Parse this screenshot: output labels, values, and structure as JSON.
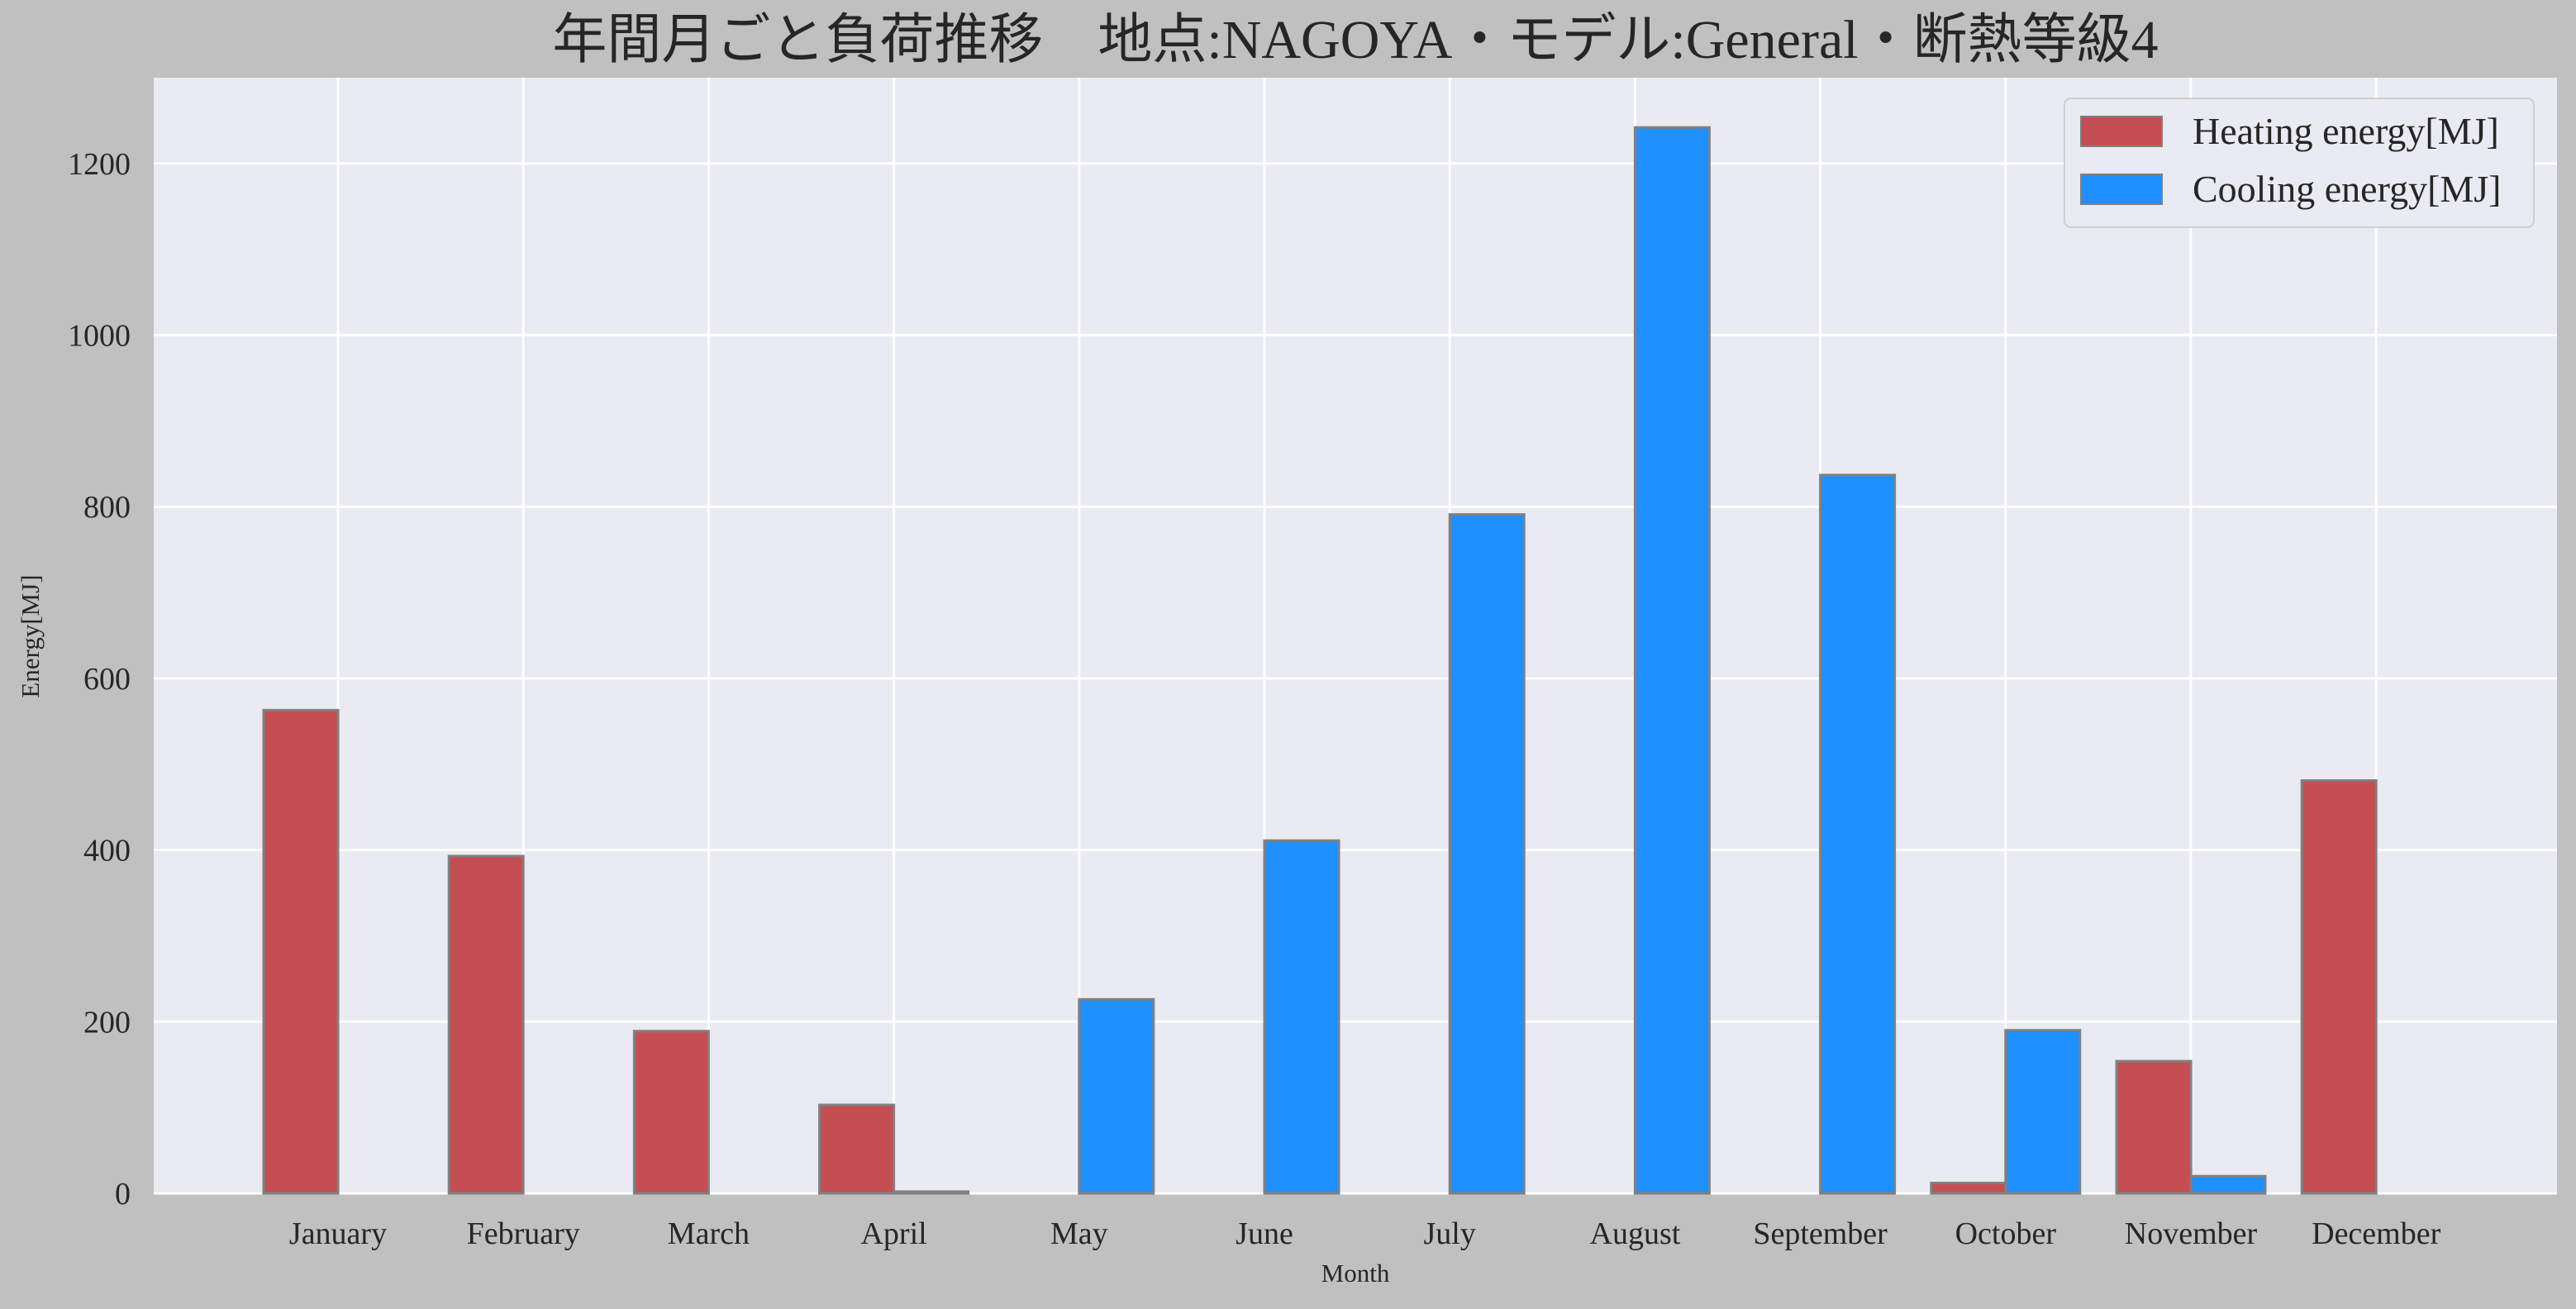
{
  "chart_data": {
    "type": "bar",
    "title": "年間月ごと負荷推移　地点:NAGOYA・モデル:General・断熱等級4",
    "xlabel": "Month",
    "ylabel": "Energy[MJ]",
    "categories": [
      "January",
      "February",
      "March",
      "April",
      "May",
      "June",
      "July",
      "August",
      "September",
      "October",
      "November",
      "December"
    ],
    "series": [
      {
        "name": "Heating energy[MJ]",
        "color": "#c44e52",
        "values": [
          563,
          393,
          189,
          103,
          0,
          0,
          0,
          0,
          0,
          12,
          154,
          481
        ]
      },
      {
        "name": "Cooling energy[MJ]",
        "color": "#1e90ff",
        "values": [
          0,
          0,
          0,
          2,
          226,
          411,
          791,
          1242,
          837,
          190,
          20,
          0
        ]
      }
    ],
    "ylim": [
      0,
      1300
    ],
    "yticks": [
      0,
      200,
      400,
      600,
      800,
      1000,
      1200
    ],
    "grid": true,
    "legend_position": "top-right",
    "colors": {
      "background": "#c0c0c0",
      "plot_background": "#e9eaf2",
      "grid": "#ffffff",
      "bar_edge": "#808080"
    }
  }
}
